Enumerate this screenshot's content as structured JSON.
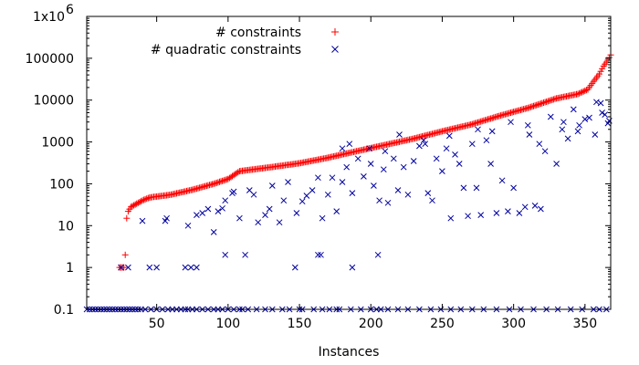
{
  "chart_data": {
    "type": "scatter",
    "title": "",
    "xlabel": "Instances",
    "ylabel": "",
    "xlim": [
      1,
      368
    ],
    "ylim": [
      0.1,
      1000000
    ],
    "yscale": "log",
    "grid": false,
    "legend_position": "top-left",
    "x_ticks": [
      50,
      100,
      150,
      200,
      250,
      300,
      350
    ],
    "x_tick_labels": [
      "50",
      "100",
      "150",
      "200",
      "250",
      "300",
      "350"
    ],
    "y_ticks": [
      0.1,
      1,
      10,
      100,
      1000,
      10000,
      100000,
      1000000
    ],
    "y_tick_labels": [
      "0.1",
      "1",
      "10",
      "100",
      "1000",
      "10000",
      "100000",
      "1x10"
    ],
    "y_top_exponent": "6",
    "series": [
      {
        "name": "# constraints",
        "marker": "plus",
        "color": "#ff0000",
        "anchors": [
          [
            24,
            1
          ],
          [
            27,
            1
          ],
          [
            28,
            2
          ],
          [
            29,
            15
          ],
          [
            30,
            22
          ],
          [
            32,
            28
          ],
          [
            40,
            40
          ],
          [
            45,
            47
          ],
          [
            60,
            55
          ],
          [
            75,
            72
          ],
          [
            90,
            100
          ],
          [
            100,
            130
          ],
          [
            108,
            200
          ],
          [
            115,
            215
          ],
          [
            130,
            250
          ],
          [
            150,
            310
          ],
          [
            170,
            420
          ],
          [
            190,
            600
          ],
          [
            210,
            850
          ],
          [
            230,
            1200
          ],
          [
            250,
            1800
          ],
          [
            270,
            2600
          ],
          [
            290,
            4200
          ],
          [
            310,
            6500
          ],
          [
            330,
            11000
          ],
          [
            345,
            14000
          ],
          [
            352,
            18000
          ],
          [
            356,
            28000
          ],
          [
            360,
            42000
          ],
          [
            363,
            65000
          ],
          [
            366,
            90000
          ],
          [
            368,
            120000
          ]
        ]
      },
      {
        "name": "# quadratic constraints",
        "marker": "x",
        "color": "#0000a0",
        "points": [
          [
            1,
            0.1
          ],
          [
            3,
            0.1
          ],
          [
            5,
            0.1
          ],
          [
            7,
            0.1
          ],
          [
            9,
            0.1
          ],
          [
            11,
            0.1
          ],
          [
            13,
            0.1
          ],
          [
            15,
            0.1
          ],
          [
            17,
            0.1
          ],
          [
            19,
            0.1
          ],
          [
            21,
            0.1
          ],
          [
            23,
            0.1
          ],
          [
            25,
            0.1
          ],
          [
            27,
            0.1
          ],
          [
            29,
            0.1
          ],
          [
            31,
            0.1
          ],
          [
            33,
            0.1
          ],
          [
            35,
            0.1
          ],
          [
            37,
            0.1
          ],
          [
            39,
            0.1
          ],
          [
            42,
            0.1
          ],
          [
            46,
            0.1
          ],
          [
            50,
            0.1
          ],
          [
            54,
            0.1
          ],
          [
            58,
            0.1
          ],
          [
            61,
            0.1
          ],
          [
            64,
            0.1
          ],
          [
            67,
            0.1
          ],
          [
            70,
            0.1
          ],
          [
            72,
            0.1
          ],
          [
            75,
            0.1
          ],
          [
            78,
            0.1
          ],
          [
            82,
            0.1
          ],
          [
            86,
            0.1
          ],
          [
            90,
            0.1
          ],
          [
            93,
            0.1
          ],
          [
            96,
            0.1
          ],
          [
            100,
            0.1
          ],
          [
            104,
            0.1
          ],
          [
            108,
            0.1
          ],
          [
            110,
            0.1
          ],
          [
            114,
            0.1
          ],
          [
            120,
            0.1
          ],
          [
            126,
            0.1
          ],
          [
            131,
            0.1
          ],
          [
            138,
            0.1
          ],
          [
            143,
            0.1
          ],
          [
            150,
            0.1
          ],
          [
            152,
            0.1
          ],
          [
            160,
            0.1
          ],
          [
            166,
            0.1
          ],
          [
            171,
            0.1
          ],
          [
            176,
            0.1
          ],
          [
            178,
            0.1
          ],
          [
            186,
            0.1
          ],
          [
            193,
            0.1
          ],
          [
            200,
            0.1
          ],
          [
            204,
            0.1
          ],
          [
            207,
            0.1
          ],
          [
            212,
            0.1
          ],
          [
            219,
            0.1
          ],
          [
            226,
            0.1
          ],
          [
            234,
            0.1
          ],
          [
            242,
            0.1
          ],
          [
            249,
            0.1
          ],
          [
            256,
            0.1
          ],
          [
            263,
            0.1
          ],
          [
            271,
            0.1
          ],
          [
            279,
            0.1
          ],
          [
            288,
            0.1
          ],
          [
            297,
            0.1
          ],
          [
            305,
            0.1
          ],
          [
            314,
            0.1
          ],
          [
            323,
            0.1
          ],
          [
            331,
            0.1
          ],
          [
            340,
            0.1
          ],
          [
            348,
            0.1
          ],
          [
            356,
            0.1
          ],
          [
            360,
            0.1
          ],
          [
            365,
            0.1
          ],
          [
            25,
            1
          ],
          [
            30,
            1
          ],
          [
            45,
            1
          ],
          [
            50,
            1
          ],
          [
            70,
            1
          ],
          [
            74,
            1
          ],
          [
            78,
            1
          ],
          [
            147,
            1
          ],
          [
            187,
            1
          ],
          [
            98,
            2
          ],
          [
            112,
            2
          ],
          [
            163,
            2
          ],
          [
            165,
            2
          ],
          [
            205,
            2
          ],
          [
            40,
            13
          ],
          [
            56,
            13
          ],
          [
            57,
            15
          ],
          [
            72,
            10
          ],
          [
            78,
            18
          ],
          [
            82,
            20
          ],
          [
            86,
            25
          ],
          [
            90,
            7
          ],
          [
            93,
            22
          ],
          [
            96,
            26
          ],
          [
            98,
            40
          ],
          [
            103,
            60
          ],
          [
            104,
            65
          ],
          [
            108,
            15
          ],
          [
            115,
            70
          ],
          [
            118,
            55
          ],
          [
            121,
            12
          ],
          [
            126,
            18
          ],
          [
            129,
            25
          ],
          [
            131,
            90
          ],
          [
            136,
            12
          ],
          [
            139,
            40
          ],
          [
            142,
            110
          ],
          [
            148,
            20
          ],
          [
            152,
            38
          ],
          [
            155,
            52
          ],
          [
            159,
            70
          ],
          [
            163,
            140
          ],
          [
            166,
            15
          ],
          [
            170,
            55
          ],
          [
            173,
            140
          ],
          [
            176,
            22
          ],
          [
            180,
            110
          ],
          [
            183,
            250
          ],
          [
            187,
            60
          ],
          [
            191,
            400
          ],
          [
            195,
            150
          ],
          [
            199,
            700
          ],
          [
            202,
            90
          ],
          [
            206,
            40
          ],
          [
            209,
            220
          ],
          [
            212,
            35
          ],
          [
            216,
            400
          ],
          [
            219,
            70
          ],
          [
            223,
            250
          ],
          [
            226,
            55
          ],
          [
            230,
            350
          ],
          [
            234,
            800
          ],
          [
            237,
            1100
          ],
          [
            240,
            60
          ],
          [
            243,
            40
          ],
          [
            246,
            400
          ],
          [
            250,
            200
          ],
          [
            253,
            700
          ],
          [
            256,
            15
          ],
          [
            259,
            500
          ],
          [
            262,
            300
          ],
          [
            265,
            80
          ],
          [
            268,
            17
          ],
          [
            271,
            900
          ],
          [
            274,
            80
          ],
          [
            277,
            18
          ],
          [
            281,
            1100
          ],
          [
            284,
            300
          ],
          [
            288,
            20
          ],
          [
            292,
            120
          ],
          [
            296,
            22
          ],
          [
            300,
            80
          ],
          [
            304,
            20
          ],
          [
            308,
            28
          ],
          [
            311,
            1500
          ],
          [
            315,
            30
          ],
          [
            319,
            25
          ],
          [
            322,
            600
          ],
          [
            326,
            4000
          ],
          [
            330,
            300
          ],
          [
            334,
            2000
          ],
          [
            338,
            1200
          ],
          [
            342,
            6000
          ],
          [
            346,
            2500
          ],
          [
            350,
            3500
          ],
          [
            353,
            3800
          ],
          [
            357,
            1500
          ],
          [
            361,
            8500
          ],
          [
            364,
            4500
          ],
          [
            367,
            3200
          ],
          [
            180,
            700
          ],
          [
            185,
            900
          ],
          [
            200,
            300
          ],
          [
            210,
            600
          ],
          [
            220,
            1500
          ],
          [
            238,
            900
          ],
          [
            255,
            1400
          ],
          [
            275,
            2000
          ],
          [
            285,
            1800
          ],
          [
            298,
            3000
          ],
          [
            310,
            2500
          ],
          [
            318,
            900
          ],
          [
            335,
            3000
          ],
          [
            345,
            1800
          ],
          [
            358,
            9000
          ],
          [
            362,
            5000
          ],
          [
            366,
            2800
          ]
        ]
      }
    ]
  }
}
